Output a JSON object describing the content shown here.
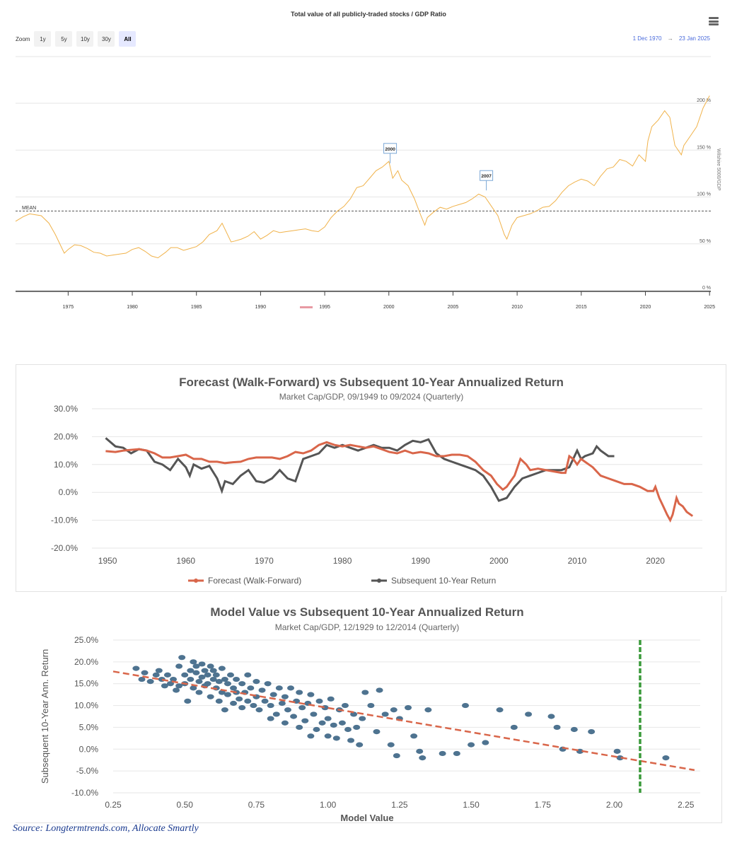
{
  "top_chart": {
    "title": "Total value of all publicly-traded stocks / GDP Ratio",
    "zoom_label": "Zoom",
    "zoom_buttons": [
      "1y",
      "5y",
      "10y",
      "30y",
      "All"
    ],
    "zoom_active": "All",
    "date_from": "1 Dec 1970",
    "date_arrow": "→",
    "date_to": "23 Jan 2025",
    "right_axis_title": "Wilshire 5000/GDP",
    "mean_label": "MEAN",
    "flag_2000": "2000",
    "flag_2007": "2007",
    "line_color": "#f0b24a",
    "menu_icon": "hamburger-menu-icon"
  },
  "forecast_chart": {
    "title": "Forecast (Walk-Forward) vs Subsequent 10-Year Annualized Return",
    "subtitle": "Market Cap/GDP, 09/1949 to 09/2024 (Quarterly)",
    "legend_forecast": "Forecast (Walk-Forward)",
    "legend_subsequent": "Subsequent 10-Year Return",
    "forecast_color": "#d9664a",
    "subsequent_color": "#555555"
  },
  "scatter_chart": {
    "title": "Model Value vs Subsequent 10-Year Annualized Return",
    "subtitle": "Market Cap/GDP, 12/1929 to 12/2014 (Quarterly)",
    "xlabel": "Model Value",
    "ylabel": "Subsequent 10-Year Ann. Return",
    "point_color": "#4e7390",
    "trend_color": "#d9664a",
    "marker_color": "#3a9a3a"
  },
  "source_text": "Source: Longtermtrends.com, Allocate Smartly",
  "chart_data": [
    {
      "type": "line",
      "title": "Total value of all publicly-traded stocks / GDP Ratio",
      "xlabel": "",
      "ylabel": "Wilshire 5000/GDP",
      "x_ticks": [
        "1975",
        "1980",
        "1985",
        "1990",
        "1995",
        "2000",
        "2005",
        "2010",
        "2015",
        "2020",
        "2025"
      ],
      "y_ticks": [
        "0 %",
        "50 %",
        "100 %",
        "150 %",
        "200 %"
      ],
      "ylim": [
        0,
        200
      ],
      "xlim": [
        1970.9,
        2025.1
      ],
      "grid": true,
      "mean": 85,
      "x": [
        1970.9,
        1971.5,
        1972,
        1972.9,
        1973.5,
        1974,
        1974.7,
        1975,
        1975.5,
        1976,
        1976.5,
        1977,
        1977.5,
        1978,
        1978.5,
        1979,
        1979.5,
        1980,
        1980.5,
        1981,
        1981.5,
        1982,
        1982.6,
        1983,
        1983.5,
        1984,
        1984.5,
        1985,
        1985.5,
        1986,
        1986.6,
        1987,
        1987.7,
        1988,
        1988.5,
        1989,
        1989.5,
        1990,
        1990.5,
        1991,
        1991.5,
        1992,
        1992.5,
        1993,
        1993.5,
        1994,
        1994.5,
        1995,
        1995.5,
        1996,
        1996.5,
        1997,
        1997.5,
        1998,
        1998.5,
        1999,
        1999.5,
        2000,
        2000.3,
        2000.7,
        2001,
        2001.5,
        2002,
        2002.5,
        2002.8,
        2003,
        2003.5,
        2004,
        2004.5,
        2005,
        2005.5,
        2006,
        2006.5,
        2007,
        2007.5,
        2008,
        2008.5,
        2009,
        2009.2,
        2009.6,
        2010,
        2010.5,
        2011,
        2011.5,
        2012,
        2012.5,
        2013,
        2013.5,
        2014,
        2014.5,
        2015,
        2015.5,
        2016,
        2016.5,
        2017,
        2017.5,
        2018,
        2018.5,
        2019,
        2019.5,
        2020,
        2020.2,
        2020.5,
        2021,
        2021.5,
        2021.9,
        2022.3,
        2022.8,
        2023,
        2023.5,
        2024,
        2024.5,
        2025
      ],
      "y": [
        74,
        79,
        82,
        80,
        72,
        60,
        40,
        44,
        49,
        48,
        45,
        41,
        40,
        37,
        38,
        39,
        40,
        44,
        46,
        42,
        37,
        35,
        41,
        46,
        46,
        43,
        45,
        47,
        52,
        60,
        64,
        72,
        52,
        53,
        55,
        58,
        63,
        55,
        59,
        64,
        62,
        63,
        64,
        65,
        66,
        64,
        63,
        68,
        78,
        85,
        90,
        98,
        110,
        112,
        120,
        128,
        132,
        138,
        120,
        128,
        118,
        112,
        98,
        80,
        70,
        78,
        84,
        89,
        87,
        90,
        92,
        94,
        98,
        103,
        100,
        90,
        80,
        60,
        55,
        70,
        78,
        80,
        82,
        85,
        89,
        90,
        96,
        105,
        112,
        116,
        119,
        117,
        112,
        122,
        130,
        132,
        140,
        138,
        133,
        145,
        138,
        160,
        175,
        182,
        192,
        185,
        155,
        145,
        155,
        165,
        175,
        195,
        208
      ]
    },
    {
      "type": "line",
      "title": "Forecast (Walk-Forward) vs Subsequent 10-Year Annualized Return",
      "subtitle": "Market Cap/GDP, 09/1949 to 09/2024 (Quarterly)",
      "xlabel": "",
      "ylabel": "",
      "ylim": [
        -20,
        30
      ],
      "xlim": [
        1948,
        2026
      ],
      "x_ticks": [
        "1950",
        "1960",
        "1970",
        "1980",
        "1990",
        "2000",
        "2010",
        "2020"
      ],
      "y_ticks": [
        "30.0%",
        "20.0%",
        "10.0%",
        "0.0%",
        "-10.0%",
        "-20.0%"
      ],
      "grid": true,
      "legend": "bottom",
      "series": [
        {
          "name": "Forecast (Walk-Forward)",
          "x": [
            1949.75,
            1951,
            1952,
            1954,
            1955,
            1956,
            1957,
            1958,
            1959,
            1960,
            1961,
            1962,
            1963,
            1964,
            1965,
            1966,
            1967,
            1968,
            1969,
            1970,
            1971,
            1972,
            1973,
            1974,
            1975,
            1976,
            1977,
            1978,
            1979,
            1980,
            1981,
            1982,
            1983,
            1984,
            1985,
            1986,
            1987,
            1988,
            1989,
            1990,
            1991,
            1992,
            1993,
            1994,
            1995,
            1996,
            1997,
            1998,
            1999,
            1999.75,
            2000.5,
            2001,
            2002,
            2002.75,
            2003.5,
            2004,
            2005,
            2006,
            2007,
            2008,
            2008.5,
            2009,
            2009.5,
            2010,
            2010.5,
            2011,
            2011.5,
            2012,
            2013,
            2014,
            2015,
            2016,
            2017,
            2018,
            2019,
            2019.75,
            2020,
            2020.5,
            2021,
            2021.5,
            2021.9,
            2022.2,
            2022.7,
            2023,
            2023.5,
            2024,
            2024.75
          ],
          "y": [
            14.8,
            14.5,
            15,
            15.5,
            15,
            14,
            12.5,
            12.5,
            13,
            13.5,
            12,
            12,
            11,
            11,
            10.5,
            10.8,
            11,
            12,
            12.5,
            12.5,
            12.5,
            12,
            13,
            14.5,
            14,
            15,
            17,
            18,
            17,
            16.5,
            17,
            16.5,
            16,
            16.5,
            15.5,
            14.5,
            14,
            15,
            14,
            14.5,
            14,
            13,
            13,
            13.5,
            13.5,
            13,
            11,
            8,
            6,
            3,
            1,
            2,
            6,
            12,
            10,
            8,
            8.5,
            8,
            7.5,
            7,
            7,
            13,
            12,
            10,
            12,
            11,
            10,
            9,
            6,
            5,
            4,
            3,
            3,
            2,
            0.5,
            0.5,
            2,
            -2,
            -5,
            -8,
            -10,
            -8,
            -2,
            -4,
            -5,
            -7,
            -8.5
          ]
        },
        {
          "name": "Subsequent 10-Year Return",
          "x": [
            1949.75,
            1951,
            1952,
            1953,
            1954,
            1955,
            1956,
            1957,
            1958,
            1959,
            1960,
            1960.5,
            1961,
            1962,
            1963,
            1964,
            1964.6,
            1965,
            1966,
            1967,
            1968,
            1969,
            1970,
            1971,
            1972,
            1973,
            1974,
            1975,
            1976,
            1977,
            1978,
            1979,
            1980,
            1981,
            1982,
            1983,
            1984,
            1985,
            1986,
            1987,
            1988,
            1989,
            1990,
            1991,
            1992,
            1993,
            1994,
            1995,
            1996,
            1997,
            1998,
            1999,
            2000,
            2001,
            2002,
            2003,
            2004,
            2005,
            2006,
            2007,
            2008,
            2009,
            2010,
            2010.5,
            2011,
            2012,
            2012.5,
            2013,
            2014,
            2014.75
          ],
          "y": [
            19.5,
            16.5,
            16,
            14,
            15.5,
            15,
            11,
            10,
            8,
            12,
            9,
            6,
            10,
            8.5,
            9.5,
            5,
            0.5,
            4,
            3,
            6,
            8,
            4,
            3.5,
            5,
            8,
            5,
            4,
            12,
            13,
            14,
            17,
            16,
            17,
            16,
            15,
            16,
            17,
            16,
            16,
            15,
            17,
            18.5,
            18,
            19,
            14,
            12,
            11,
            10,
            9,
            8,
            6,
            2,
            -3,
            -2,
            2,
            5,
            6,
            7,
            8,
            8,
            8,
            9,
            15,
            12,
            13,
            14,
            16.5,
            15,
            13,
            13
          ]
        }
      ]
    },
    {
      "type": "scatter",
      "title": "Model Value vs Subsequent 10-Year Annualized Return",
      "subtitle": "Market Cap/GDP, 12/1929 to 12/2014 (Quarterly)",
      "xlabel": "Model Value",
      "ylabel": "Subsequent 10-Year Ann. Return",
      "xlim": [
        0.25,
        2.3
      ],
      "ylim": [
        -10,
        25
      ],
      "x_ticks": [
        "0.25",
        "0.50",
        "0.75",
        "1.00",
        "1.25",
        "1.50",
        "1.75",
        "2.00",
        "2.25"
      ],
      "y_ticks": [
        "25.0%",
        "20.0%",
        "15.0%",
        "10.0%",
        "5.0%",
        "0.0%",
        "-5.0%",
        "-10.0%"
      ],
      "grid": true,
      "trendline": {
        "x": [
          0.25,
          2.28
        ],
        "y": [
          17.8,
          -4.8
        ]
      },
      "vertical_marker_x": 2.09,
      "points": [
        [
          0.33,
          18.5
        ],
        [
          0.35,
          16
        ],
        [
          0.36,
          17.5
        ],
        [
          0.38,
          15.5
        ],
        [
          0.4,
          17
        ],
        [
          0.41,
          18
        ],
        [
          0.42,
          16
        ],
        [
          0.43,
          14.5
        ],
        [
          0.44,
          17
        ],
        [
          0.45,
          15
        ],
        [
          0.46,
          16
        ],
        [
          0.47,
          13.5
        ],
        [
          0.48,
          19
        ],
        [
          0.48,
          14.5
        ],
        [
          0.49,
          21
        ],
        [
          0.5,
          17
        ],
        [
          0.5,
          15
        ],
        [
          0.51,
          11
        ],
        [
          0.52,
          18
        ],
        [
          0.52,
          16
        ],
        [
          0.53,
          20
        ],
        [
          0.53,
          14
        ],
        [
          0.54,
          19
        ],
        [
          0.54,
          17.5
        ],
        [
          0.55,
          15.5
        ],
        [
          0.55,
          13
        ],
        [
          0.56,
          19.5
        ],
        [
          0.56,
          16.5
        ],
        [
          0.57,
          18
        ],
        [
          0.57,
          14.5
        ],
        [
          0.58,
          17
        ],
        [
          0.58,
          15
        ],
        [
          0.59,
          19
        ],
        [
          0.59,
          12
        ],
        [
          0.6,
          16
        ],
        [
          0.6,
          18
        ],
        [
          0.61,
          14
        ],
        [
          0.61,
          17
        ],
        [
          0.62,
          15.5
        ],
        [
          0.62,
          11
        ],
        [
          0.63,
          13
        ],
        [
          0.63,
          18.5
        ],
        [
          0.64,
          16
        ],
        [
          0.64,
          9
        ],
        [
          0.65,
          15
        ],
        [
          0.65,
          12.5
        ],
        [
          0.66,
          17
        ],
        [
          0.67,
          14
        ],
        [
          0.67,
          10.5
        ],
        [
          0.68,
          13
        ],
        [
          0.68,
          16
        ],
        [
          0.69,
          11.5
        ],
        [
          0.7,
          15
        ],
        [
          0.7,
          9.5
        ],
        [
          0.71,
          13
        ],
        [
          0.72,
          17
        ],
        [
          0.72,
          11
        ],
        [
          0.73,
          14
        ],
        [
          0.74,
          10
        ],
        [
          0.75,
          12
        ],
        [
          0.75,
          15.5
        ],
        [
          0.76,
          9
        ],
        [
          0.77,
          13.5
        ],
        [
          0.78,
          11
        ],
        [
          0.79,
          15
        ],
        [
          0.8,
          10
        ],
        [
          0.8,
          7
        ],
        [
          0.81,
          12.5
        ],
        [
          0.82,
          8
        ],
        [
          0.83,
          14
        ],
        [
          0.84,
          10.5
        ],
        [
          0.85,
          6
        ],
        [
          0.85,
          12
        ],
        [
          0.86,
          9
        ],
        [
          0.87,
          14
        ],
        [
          0.88,
          7.5
        ],
        [
          0.89,
          11
        ],
        [
          0.9,
          5
        ],
        [
          0.9,
          13
        ],
        [
          0.91,
          9.5
        ],
        [
          0.92,
          6.5
        ],
        [
          0.93,
          10.5
        ],
        [
          0.94,
          3
        ],
        [
          0.94,
          12.5
        ],
        [
          0.95,
          8
        ],
        [
          0.96,
          4.5
        ],
        [
          0.97,
          11
        ],
        [
          0.98,
          6
        ],
        [
          0.99,
          9.5
        ],
        [
          1.0,
          3
        ],
        [
          1.0,
          7
        ],
        [
          1.01,
          11.5
        ],
        [
          1.02,
          5.5
        ],
        [
          1.03,
          2.5
        ],
        [
          1.04,
          9
        ],
        [
          1.05,
          6
        ],
        [
          1.06,
          10
        ],
        [
          1.07,
          4.5
        ],
        [
          1.08,
          2
        ],
        [
          1.09,
          8
        ],
        [
          1.1,
          5
        ],
        [
          1.11,
          1
        ],
        [
          1.12,
          7
        ],
        [
          1.13,
          13
        ],
        [
          1.15,
          10
        ],
        [
          1.17,
          4
        ],
        [
          1.18,
          13.5
        ],
        [
          1.2,
          8
        ],
        [
          1.22,
          1
        ],
        [
          1.23,
          9
        ],
        [
          1.24,
          -1.5
        ],
        [
          1.25,
          7
        ],
        [
          1.28,
          9.5
        ],
        [
          1.3,
          3
        ],
        [
          1.32,
          -0.5
        ],
        [
          1.33,
          -2
        ],
        [
          1.35,
          9
        ],
        [
          1.4,
          -1
        ],
        [
          1.45,
          -1
        ],
        [
          1.48,
          10
        ],
        [
          1.5,
          1
        ],
        [
          1.55,
          1.5
        ],
        [
          1.6,
          9
        ],
        [
          1.65,
          5
        ],
        [
          1.7,
          8
        ],
        [
          1.78,
          7.5
        ],
        [
          1.8,
          5
        ],
        [
          1.82,
          0
        ],
        [
          1.86,
          4.5
        ],
        [
          1.88,
          -0.5
        ],
        [
          1.92,
          4
        ],
        [
          2.01,
          -0.5
        ],
        [
          2.02,
          -2
        ],
        [
          2.18,
          -2
        ]
      ]
    }
  ]
}
